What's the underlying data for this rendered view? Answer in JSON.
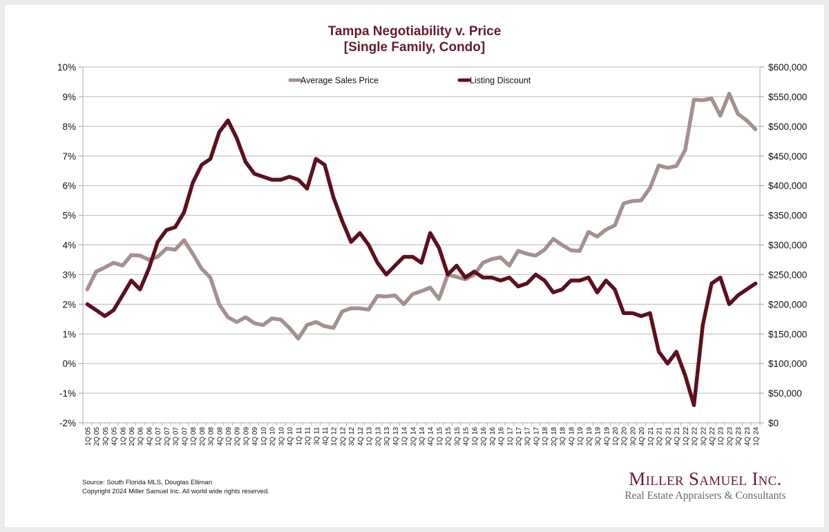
{
  "chart_data": {
    "type": "line",
    "title": "Tampa Negotiability v. Price",
    "subtitle": "[Single Family, Condo]",
    "xlabel": "",
    "ylabel_left": "",
    "ylabel_right": "",
    "grid": true,
    "legend_position": "top-center",
    "y_left": {
      "range": [
        -0.02,
        0.1
      ],
      "ticks": [
        "10%",
        "9%",
        "8%",
        "7%",
        "6%",
        "5%",
        "4%",
        "3%",
        "2%",
        "1%",
        "0%",
        "-1%",
        "-2%"
      ]
    },
    "y_right": {
      "range": [
        0,
        600000
      ],
      "ticks": [
        "$600,000",
        "$550,000",
        "$500,000",
        "$450,000",
        "$400,000",
        "$350,000",
        "$300,000",
        "$250,000",
        "$200,000",
        "$150,000",
        "$100,000",
        "$50,000",
        "$0"
      ]
    },
    "categories": [
      "1Q 05",
      "2Q 05",
      "3Q 05",
      "4Q 05",
      "1Q 06",
      "2Q 06",
      "3Q 06",
      "4Q 06",
      "1Q 07",
      "2Q 07",
      "3Q 07",
      "4Q 07",
      "1Q 08",
      "2Q 08",
      "3Q 08",
      "4Q 08",
      "1Q 09",
      "2Q 09",
      "3Q 09",
      "4Q 09",
      "1Q 10",
      "2Q 10",
      "3Q 10",
      "4Q 10",
      "1Q 11",
      "2Q 11",
      "3Q 11",
      "4Q 11",
      "1Q 12",
      "2Q 12",
      "3Q 12",
      "4Q 12",
      "1Q 13",
      "2Q 13",
      "3Q 13",
      "4Q 13",
      "1Q 14",
      "2Q 14",
      "3Q 14",
      "4Q 14",
      "1Q 15",
      "2Q 15",
      "3Q 15",
      "4Q 15",
      "1Q 16",
      "2Q 16",
      "3Q 16",
      "4Q 16",
      "1Q 17",
      "2Q 17",
      "3Q 17",
      "4Q 17",
      "1Q 18",
      "2Q 18",
      "3Q 18",
      "4Q 18",
      "1Q 19",
      "2Q 19",
      "3Q 19",
      "4Q 19",
      "1Q 20",
      "2Q 20",
      "3Q 20",
      "4Q 20",
      "1Q 21",
      "2Q 21",
      "3Q 21",
      "4Q 21",
      "1Q 22",
      "2Q 22",
      "3Q 22",
      "4Q 22",
      "1Q 23",
      "2Q 23",
      "3Q 23",
      "4Q 23",
      "1Q 24"
    ],
    "series": [
      {
        "name": "Average Sales Price",
        "axis": "right",
        "color": "#a59090",
        "values": [
          225000,
          255000,
          262000,
          270000,
          265000,
          283000,
          282000,
          275000,
          280000,
          294000,
          292000,
          308000,
          285000,
          260000,
          245000,
          200000,
          178000,
          170000,
          178000,
          168000,
          165000,
          176000,
          174000,
          160000,
          142000,
          165000,
          170000,
          163000,
          160000,
          188000,
          193000,
          193000,
          191000,
          214000,
          213000,
          215000,
          200000,
          217000,
          222000,
          228000,
          209000,
          250000,
          246000,
          242000,
          250000,
          270000,
          276000,
          279000,
          265000,
          290000,
          285000,
          282000,
          292000,
          310000,
          300000,
          291000,
          290000,
          322000,
          314000,
          326000,
          333000,
          370000,
          374000,
          375000,
          396000,
          434000,
          430000,
          433000,
          460000,
          545000,
          544000,
          547000,
          518000,
          555000,
          521000,
          510000,
          495000
        ]
      },
      {
        "name": "Listing Discount",
        "axis": "left",
        "color": "#5e0f1e",
        "values": [
          0.02,
          0.018,
          0.016,
          0.018,
          0.023,
          0.028,
          0.025,
          0.032,
          0.041,
          0.045,
          0.046,
          0.051,
          0.061,
          0.067,
          0.069,
          0.078,
          0.082,
          0.076,
          0.068,
          0.064,
          0.063,
          0.062,
          0.062,
          0.063,
          0.062,
          0.059,
          0.069,
          0.067,
          0.056,
          0.048,
          0.041,
          0.044,
          0.04,
          0.034,
          0.03,
          0.033,
          0.036,
          0.036,
          0.034,
          0.044,
          0.039,
          0.03,
          0.033,
          0.029,
          0.031,
          0.029,
          0.029,
          0.028,
          0.029,
          0.026,
          0.027,
          0.03,
          0.028,
          0.024,
          0.025,
          0.028,
          0.028,
          0.029,
          0.024,
          0.028,
          0.025,
          0.017,
          0.017,
          0.016,
          0.017,
          0.004,
          0.0,
          0.004,
          -0.004,
          -0.014,
          0.013,
          0.027,
          0.029,
          0.02,
          0.023,
          0.025,
          0.027
        ]
      }
    ]
  },
  "footer": {
    "source": "Source: South Florida MLS, Douglas Elliman",
    "copyright": "Copyright 2024 Miller Samuel Inc.  All world wide rights reserved."
  },
  "brand": {
    "name": "Miller Samuel Inc.",
    "tagline": "Real Estate Appraisers & Consultants"
  }
}
